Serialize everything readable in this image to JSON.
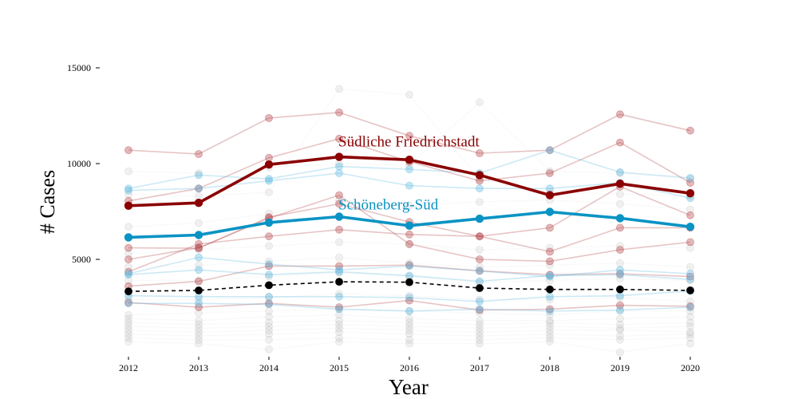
{
  "chart_data": {
    "type": "line",
    "xlabel": "Year",
    "ylabel": "# Cases",
    "x": [
      2012,
      2013,
      2014,
      2015,
      2016,
      2017,
      2018,
      2019,
      2020
    ],
    "xlim": [
      2012,
      2020
    ],
    "ylim": [
      0,
      16000
    ],
    "yticks": [
      5000,
      10000,
      15000
    ],
    "grid": false,
    "colors": {
      "highlight_red": "#8b0000",
      "highlight_blue": "#0a93c4",
      "context_red": "#b5484c",
      "context_blue": "#62bbdf",
      "mean_black": "#000000",
      "background_grey": "#b0b0b0"
    },
    "series": [
      {
        "role": "highlight",
        "color": "highlight_red",
        "values": [
          7800,
          7950,
          9950,
          10350,
          10200,
          9400,
          8350,
          8950,
          8450
        ]
      },
      {
        "role": "highlight",
        "color": "highlight_blue",
        "values": [
          6150,
          6270,
          6920,
          7230,
          6760,
          7120,
          7480,
          7150,
          6700
        ]
      },
      {
        "role": "mean",
        "color": "mean_black",
        "values": [
          3330,
          3380,
          3650,
          3830,
          3810,
          3500,
          3430,
          3430,
          3380
        ]
      },
      {
        "role": "context",
        "color": "context_red",
        "values": [
          10700,
          10500,
          12380,
          12670,
          11450,
          10540,
          10700,
          12570,
          11720
        ]
      },
      {
        "role": "context",
        "color": "context_red",
        "values": [
          8050,
          8700,
          10300,
          11300,
          10100,
          9100,
          9500,
          11100,
          9000
        ]
      },
      {
        "role": "context",
        "color": "context_red",
        "values": [
          5600,
          5580,
          7200,
          7900,
          6950,
          6200,
          6650,
          8800,
          7300
        ]
      },
      {
        "role": "context",
        "color": "context_red",
        "values": [
          4350,
          5800,
          6200,
          6550,
          6300,
          6200,
          5400,
          6650,
          6650
        ]
      },
      {
        "role": "context",
        "color": "context_red",
        "values": [
          5000,
          5600,
          7150,
          8350,
          5800,
          5000,
          4900,
          5500,
          5900
        ]
      },
      {
        "role": "context",
        "color": "context_red",
        "values": [
          3600,
          3850,
          4650,
          4650,
          4700,
          4400,
          4200,
          4250,
          4100
        ]
      },
      {
        "role": "context",
        "color": "context_red",
        "values": [
          2750,
          2500,
          2700,
          2500,
          2850,
          2350,
          2400,
          2600,
          2550
        ]
      },
      {
        "role": "context",
        "color": "context_blue",
        "values": [
          8700,
          9400,
          9200,
          9850,
          9700,
          9500,
          10700,
          9550,
          9250
        ]
      },
      {
        "role": "context",
        "color": "context_blue",
        "values": [
          8600,
          8700,
          9100,
          9500,
          8850,
          8700,
          8700,
          9000,
          8200
        ]
      },
      {
        "role": "context",
        "color": "context_blue",
        "values": [
          4250,
          5100,
          4750,
          4450,
          4650,
          4400,
          4100,
          4450,
          4250
        ]
      },
      {
        "role": "context",
        "color": "context_blue",
        "values": [
          4200,
          4450,
          4200,
          4350,
          4150,
          3850,
          4150,
          4200,
          3950
        ]
      },
      {
        "role": "context",
        "color": "context_blue",
        "values": [
          3100,
          3050,
          3050,
          3050,
          3000,
          2800,
          3050,
          3100,
          3350
        ]
      },
      {
        "role": "context",
        "color": "context_blue",
        "values": [
          2700,
          2700,
          2650,
          2400,
          2300,
          2400,
          2300,
          2350,
          2500
        ]
      },
      {
        "role": "background",
        "color": "background_grey",
        "values": [
          6700,
          6900,
          7400,
          8100,
          7800,
          8000,
          8100,
          7900,
          7600
        ]
      },
      {
        "role": "background",
        "color": "background_grey",
        "values": [
          5300,
          5500,
          5700,
          5900,
          5800,
          5500,
          5600,
          5700,
          5600
        ]
      },
      {
        "role": "background",
        "color": "background_grey",
        "values": [
          2100,
          2200,
          2300,
          2400,
          2300,
          2200,
          2100,
          2300,
          2300
        ]
      },
      {
        "role": "background",
        "color": "background_grey",
        "values": [
          1900,
          1800,
          2000,
          2100,
          1900,
          1800,
          1800,
          1900,
          2000
        ]
      },
      {
        "role": "background",
        "color": "background_grey",
        "values": [
          1700,
          1600,
          1700,
          1800,
          1700,
          1600,
          1700,
          1600,
          1700
        ]
      },
      {
        "role": "background",
        "color": "background_grey",
        "values": [
          1500,
          1400,
          1500,
          1600,
          1500,
          1400,
          1500,
          1400,
          1500
        ]
      },
      {
        "role": "background",
        "color": "background_grey",
        "values": [
          1300,
          1200,
          1300,
          1400,
          1300,
          1200,
          1300,
          1300,
          1200
        ]
      },
      {
        "role": "background",
        "color": "background_grey",
        "values": [
          1100,
          1000,
          1100,
          1200,
          1100,
          1000,
          1100,
          1000,
          1100
        ]
      },
      {
        "role": "background",
        "color": "background_grey",
        "values": [
          900,
          800,
          800,
          900,
          800,
          800,
          900,
          800,
          900
        ]
      },
      {
        "role": "background",
        "color": "background_grey",
        "values": [
          700,
          600,
          300,
          700,
          600,
          600,
          700,
          150,
          600
        ]
      },
      {
        "role": "background",
        "color": "background_grey",
        "values": [
          9600,
          9500,
          9800,
          10000,
          9900,
          13200,
          9600,
          9500,
          9200
        ]
      },
      {
        "role": "background",
        "color": "background_grey",
        "values": [
          8400,
          8300,
          8500,
          13900,
          13600,
          9200,
          8500,
          8400,
          8300
        ]
      },
      {
        "role": "background",
        "color": "background_grey",
        "values": [
          4600,
          4700,
          4900,
          5100,
          4800,
          4600,
          4700,
          4800,
          4600
        ]
      },
      {
        "role": "background",
        "color": "background_grey",
        "values": [
          3900,
          3900,
          4100,
          4300,
          4100,
          3800,
          3900,
          4000,
          3900
        ]
      },
      {
        "role": "background",
        "color": "background_grey",
        "values": [
          2900,
          2900,
          3000,
          3200,
          3100,
          2900,
          2900,
          3000,
          2800
        ]
      }
    ],
    "annotations": [
      {
        "text": "Südliche Friedrichstadt",
        "color": "highlight_red",
        "x": 2015,
        "y": 10900
      },
      {
        "text": "Schöneberg-Süd",
        "color": "highlight_blue",
        "x": 2015,
        "y": 7600
      }
    ]
  }
}
